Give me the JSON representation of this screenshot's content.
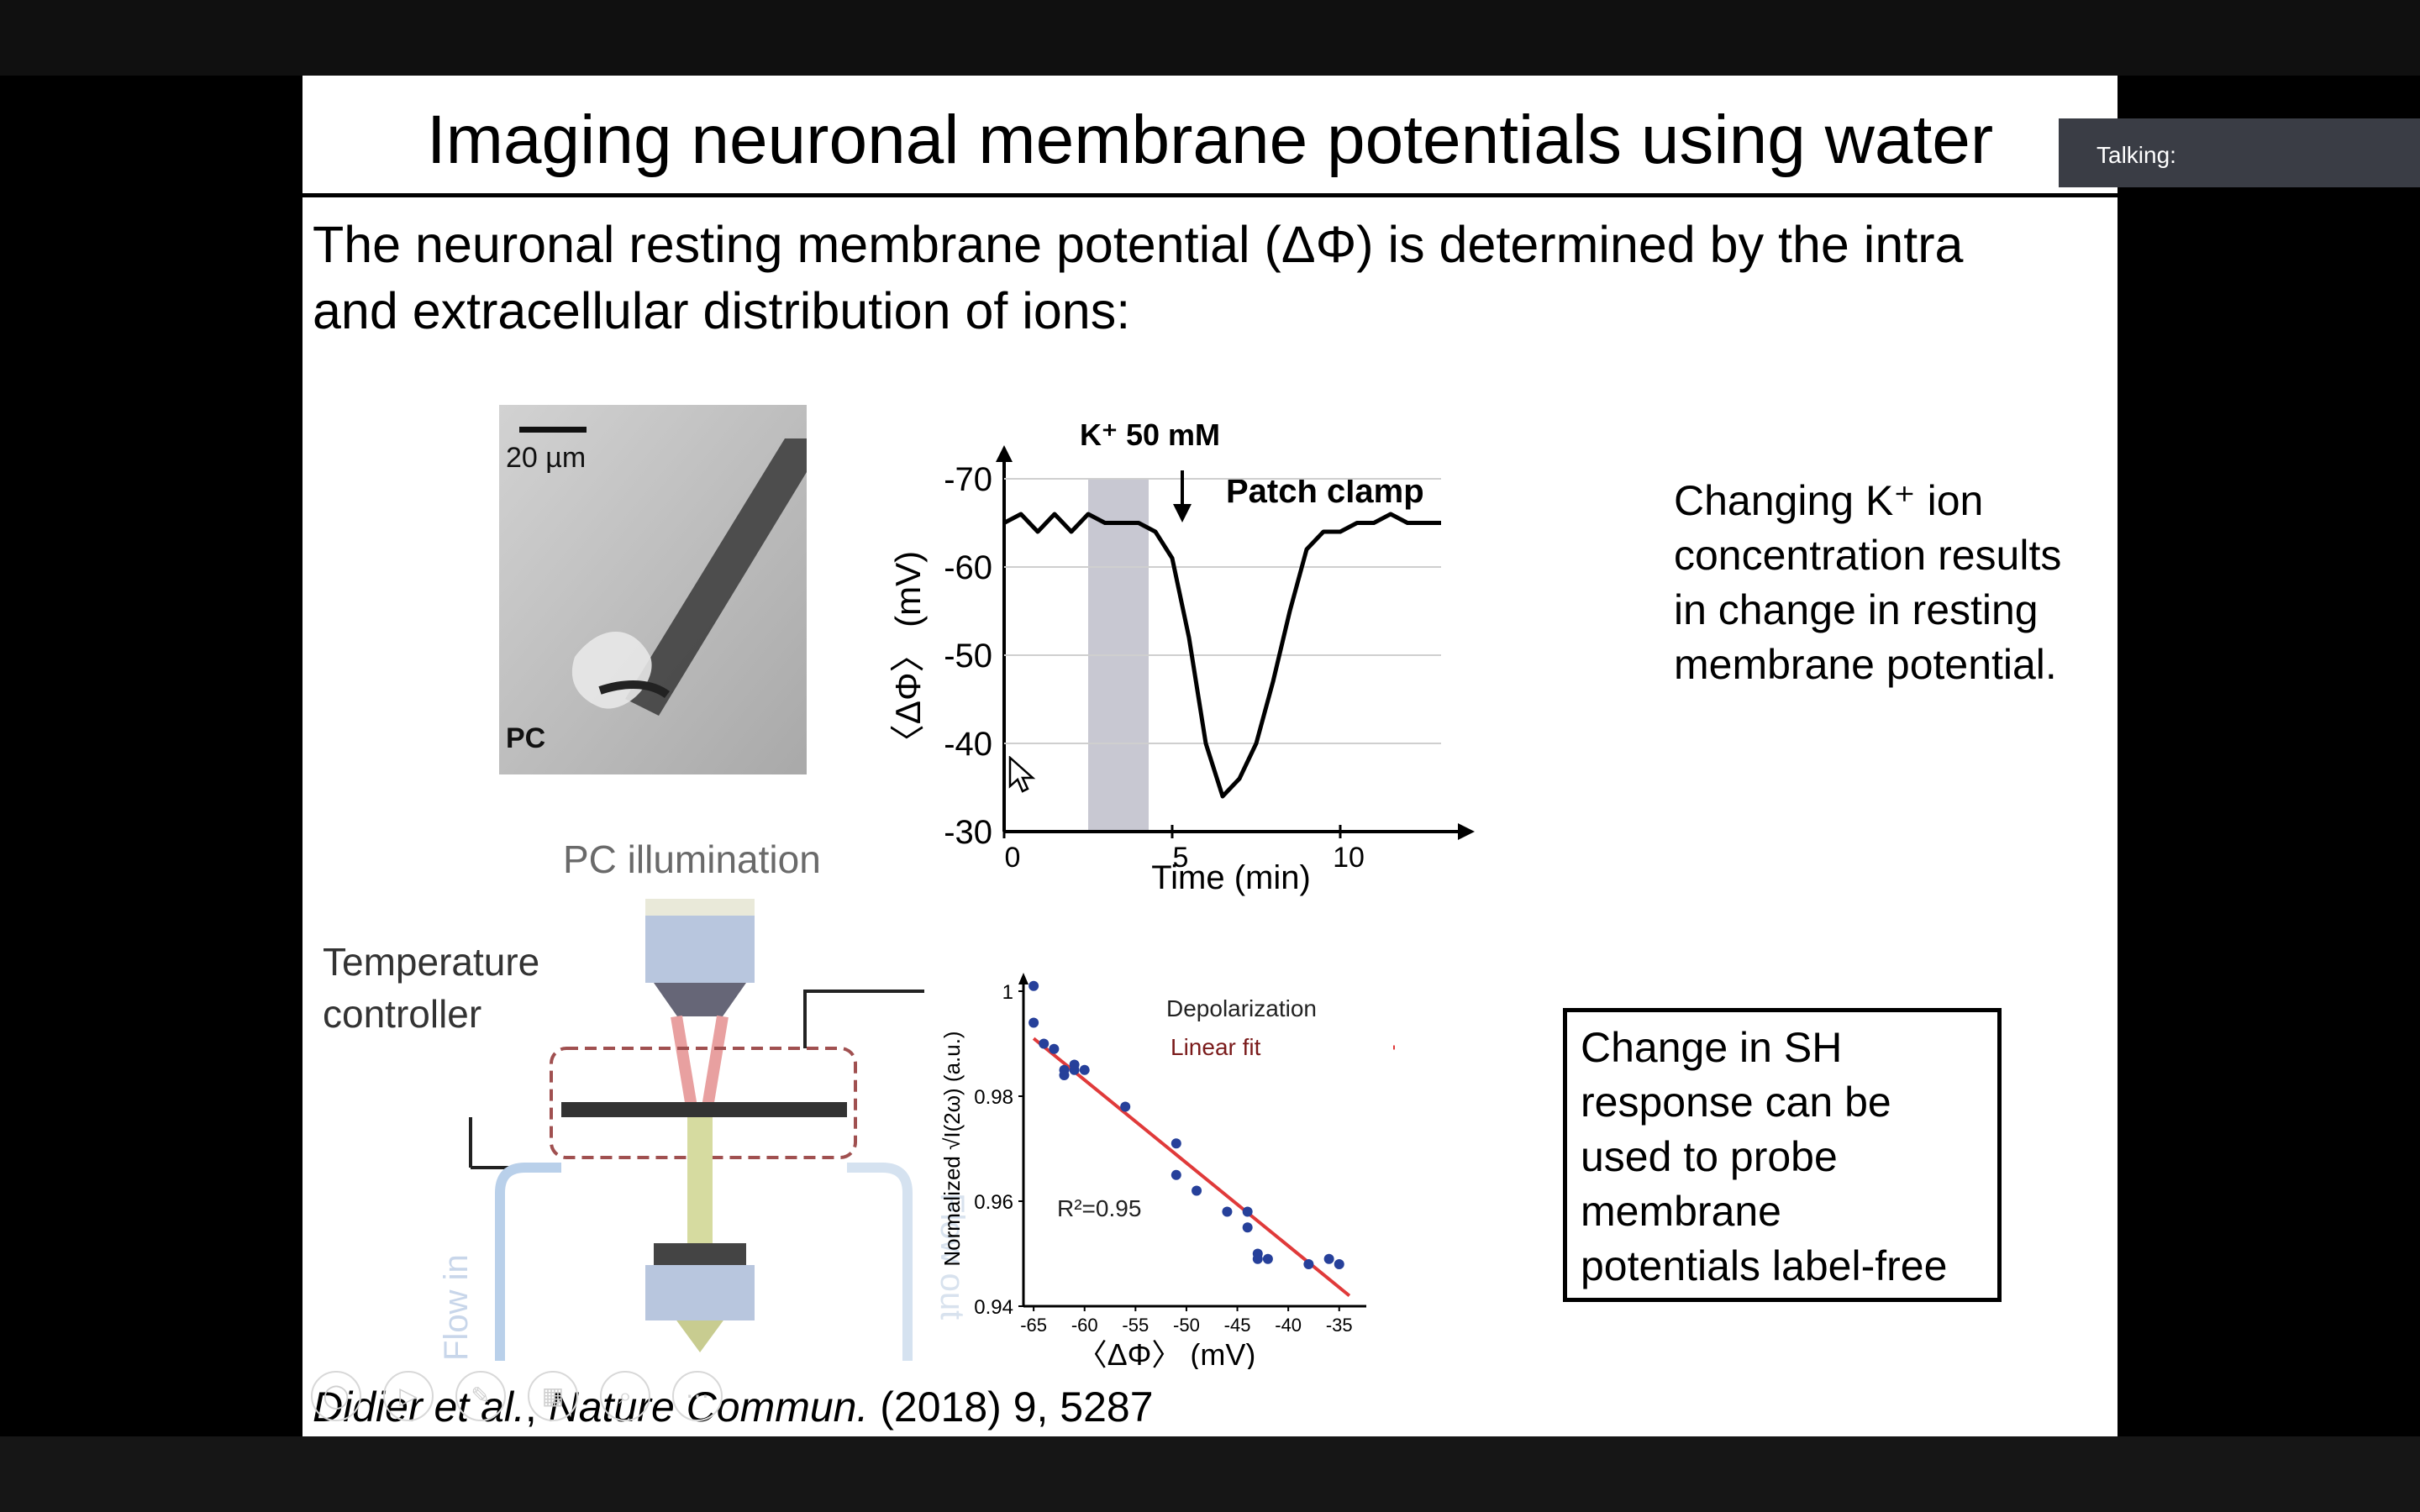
{
  "presentation": {
    "title": "Imaging neuronal membrane potentials using water",
    "intro_line1": "The neuronal resting membrane potential (ΔΦ) is determined by the intra",
    "intro_line2": "and extracellular distribution of ions:",
    "micrograph": {
      "scale_label": "20 µm",
      "corner_label": "PC"
    },
    "side_text": [
      "Changing K⁺ ion",
      "concentration results",
      "in change in resting",
      "membrane potential."
    ],
    "boxed_text": [
      "Change in SH",
      "response can be",
      "used to probe",
      "membrane",
      "potentials label-free"
    ],
    "diagram": {
      "illumination_label": "PC illumination",
      "controller_label_1": "Temperature",
      "controller_label_2": "controller",
      "flow_in": "Flow in",
      "flow_out": "Flow out"
    },
    "citation": {
      "authors": "Didier et al.",
      "journal": "Nature Commun.",
      "details": " (2018) 9, 5287",
      "sep": ", "
    }
  },
  "meeting": {
    "talking_label": "Talking:"
  },
  "colors": {
    "fit_line": "#e03a3a",
    "points": "#26409a",
    "shade": "#c8c8d2",
    "badge": "#3a3d45"
  },
  "icons": [
    "pointer-cursor-icon",
    "zoom-control-icons"
  ],
  "chart_data": [
    {
      "type": "line",
      "annotation_top": "K⁺ 50 mM",
      "annotation_arrow": "Patch clamp",
      "xlabel": "Time (min)",
      "ylabel": "〈ΔΦ〉 (mV)",
      "xticks": [
        "0",
        "5",
        "10"
      ],
      "yticks": [
        "-70",
        "-60",
        "-50",
        "-40",
        "-30"
      ],
      "xlim": [
        0,
        13
      ],
      "ylim": [
        -30,
        -70
      ],
      "shaded_x": [
        2.5,
        4.3
      ],
      "arrow_x": 5.3,
      "x": [
        0,
        0.5,
        1,
        1.5,
        2,
        2.5,
        3,
        3.5,
        4,
        4.5,
        5,
        5.5,
        6,
        6.5,
        7,
        7.5,
        8,
        8.5,
        9,
        9.5,
        10,
        10.5,
        11,
        11.5,
        12,
        12.5,
        13
      ],
      "y": [
        -65,
        -66,
        -64,
        -66,
        -64,
        -66,
        -65,
        -65,
        -65,
        -64,
        -61,
        -52,
        -40,
        -34,
        -36,
        -40,
        -47,
        -55,
        -62,
        -64,
        -64,
        -65,
        -65,
        -66,
        -65,
        -65,
        -65
      ]
    },
    {
      "type": "scatter",
      "legend": [
        "Depolarization",
        "Linear fit"
      ],
      "annotation": "R²=0.95",
      "xlabel": "〈ΔΦ〉 (mV)",
      "ylabel": "Normalized √I(2ω) (a.u.)",
      "xticks": [
        "-65",
        "-60",
        "-55",
        "-50",
        "-45",
        "-40",
        "-35"
      ],
      "yticks": [
        "0.94",
        "0.96",
        "0.98",
        "1"
      ],
      "xlim": [
        -66,
        -33
      ],
      "ylim": [
        0.94,
        1.0
      ],
      "points": [
        [
          -65,
          1.001
        ],
        [
          -65,
          0.994
        ],
        [
          -64,
          0.99
        ],
        [
          -63,
          0.989
        ],
        [
          -62,
          0.985
        ],
        [
          -62,
          0.984
        ],
        [
          -61,
          0.986
        ],
        [
          -61,
          0.985
        ],
        [
          -60,
          0.985
        ],
        [
          -56,
          0.978
        ],
        [
          -51,
          0.971
        ],
        [
          -51,
          0.965
        ],
        [
          -49,
          0.962
        ],
        [
          -46,
          0.958
        ],
        [
          -44,
          0.958
        ],
        [
          -44,
          0.955
        ],
        [
          -43,
          0.95
        ],
        [
          -43,
          0.949
        ],
        [
          -42,
          0.949
        ],
        [
          -38,
          0.948
        ],
        [
          -36,
          0.949
        ],
        [
          -35,
          0.948
        ]
      ],
      "fit": [
        [
          -65,
          0.991
        ],
        [
          -34,
          0.942
        ]
      ]
    }
  ]
}
